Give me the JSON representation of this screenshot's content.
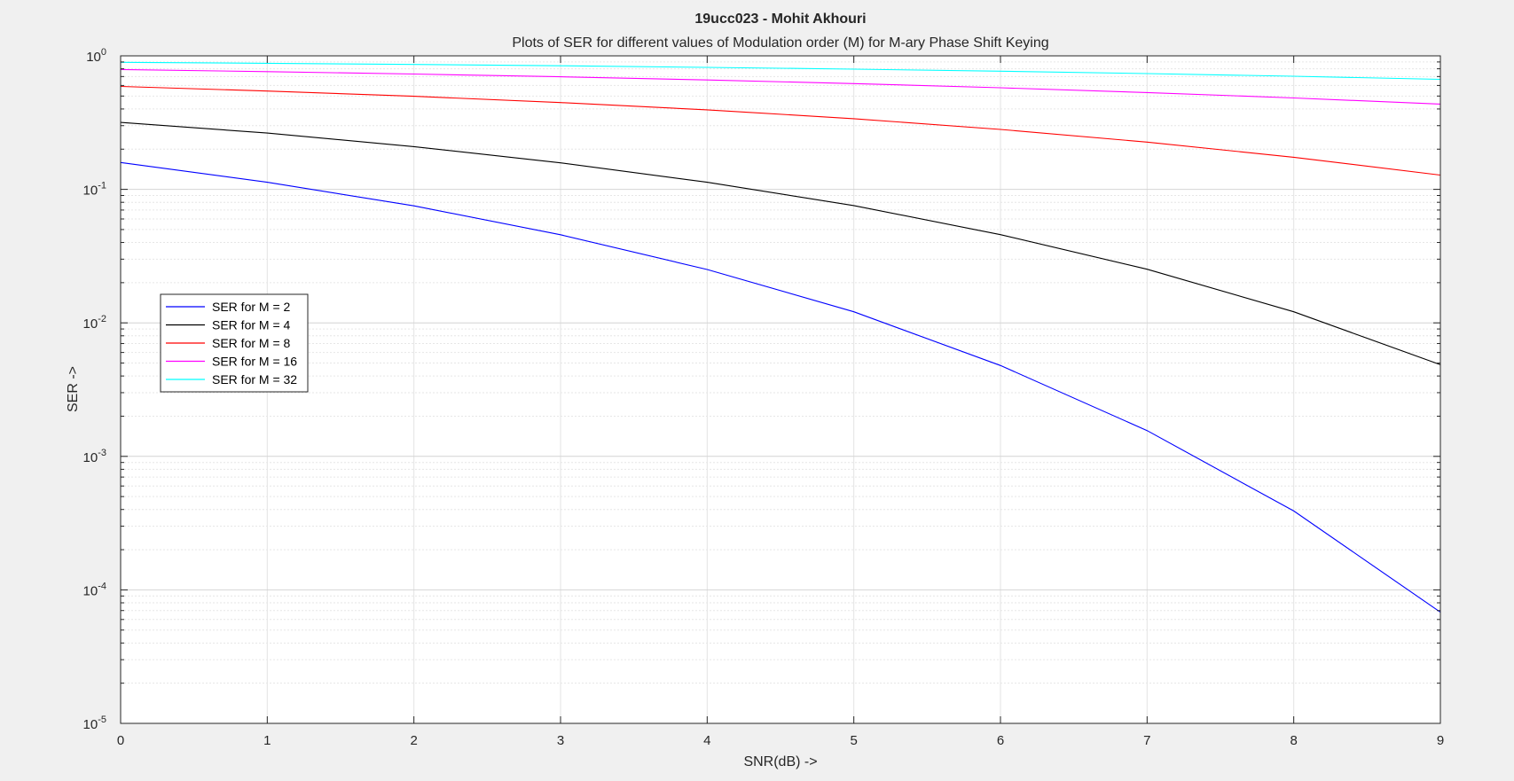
{
  "chart_data": {
    "type": "line",
    "title": "19ucc023 - Mohit Akhouri",
    "subtitle": "Plots of SER for different values of Modulation order (M) for M-ary Phase Shift Keying",
    "xlabel": "SNR(dB) ->",
    "ylabel": "SER ->",
    "xlim": [
      0,
      9
    ],
    "ylim": [
      1e-05,
      1
    ],
    "yscale": "log",
    "grid": true,
    "legend_position": "middle-left",
    "x": [
      0,
      1,
      2,
      3,
      4,
      5,
      6,
      7,
      8,
      9
    ],
    "x_tick_labels": [
      "0",
      "1",
      "2",
      "3",
      "4",
      "5",
      "6",
      "7",
      "8",
      "9"
    ],
    "y_tick_labels": [
      {
        "base": "10",
        "exp": "0",
        "value": 1
      },
      {
        "base": "10",
        "exp": "-1",
        "value": 0.1
      },
      {
        "base": "10",
        "exp": "-2",
        "value": 0.01
      },
      {
        "base": "10",
        "exp": "-3",
        "value": 0.001
      },
      {
        "base": "10",
        "exp": "-4",
        "value": 0.0001
      },
      {
        "base": "10",
        "exp": "-5",
        "value": 1e-05
      }
    ],
    "series": [
      {
        "name": "SER for M = 2",
        "color": "#0000ff",
        "values": [
          0.159,
          0.113,
          0.0753,
          0.0457,
          0.0251,
          0.0121,
          0.00479,
          0.00156,
          0.00039,
          6.8e-05
        ]
      },
      {
        "name": "SER for M = 4",
        "color": "#000000",
        "values": [
          0.317,
          0.264,
          0.209,
          0.158,
          0.113,
          0.0756,
          0.0458,
          0.0252,
          0.0121,
          0.00486
        ]
      },
      {
        "name": "SER for M = 8",
        "color": "#ff0000",
        "values": [
          0.59,
          0.545,
          0.498,
          0.447,
          0.394,
          0.338,
          0.281,
          0.226,
          0.174,
          0.128
        ]
      },
      {
        "name": "SER for M = 16",
        "color": "#ff00ff",
        "values": [
          0.79,
          0.762,
          0.731,
          0.697,
          0.66,
          0.62,
          0.577,
          0.531,
          0.484,
          0.435
        ]
      },
      {
        "name": "SER for M = 32",
        "color": "#00ffff",
        "values": [
          0.895,
          0.879,
          0.862,
          0.842,
          0.82,
          0.795,
          0.767,
          0.736,
          0.703,
          0.667
        ]
      }
    ]
  }
}
